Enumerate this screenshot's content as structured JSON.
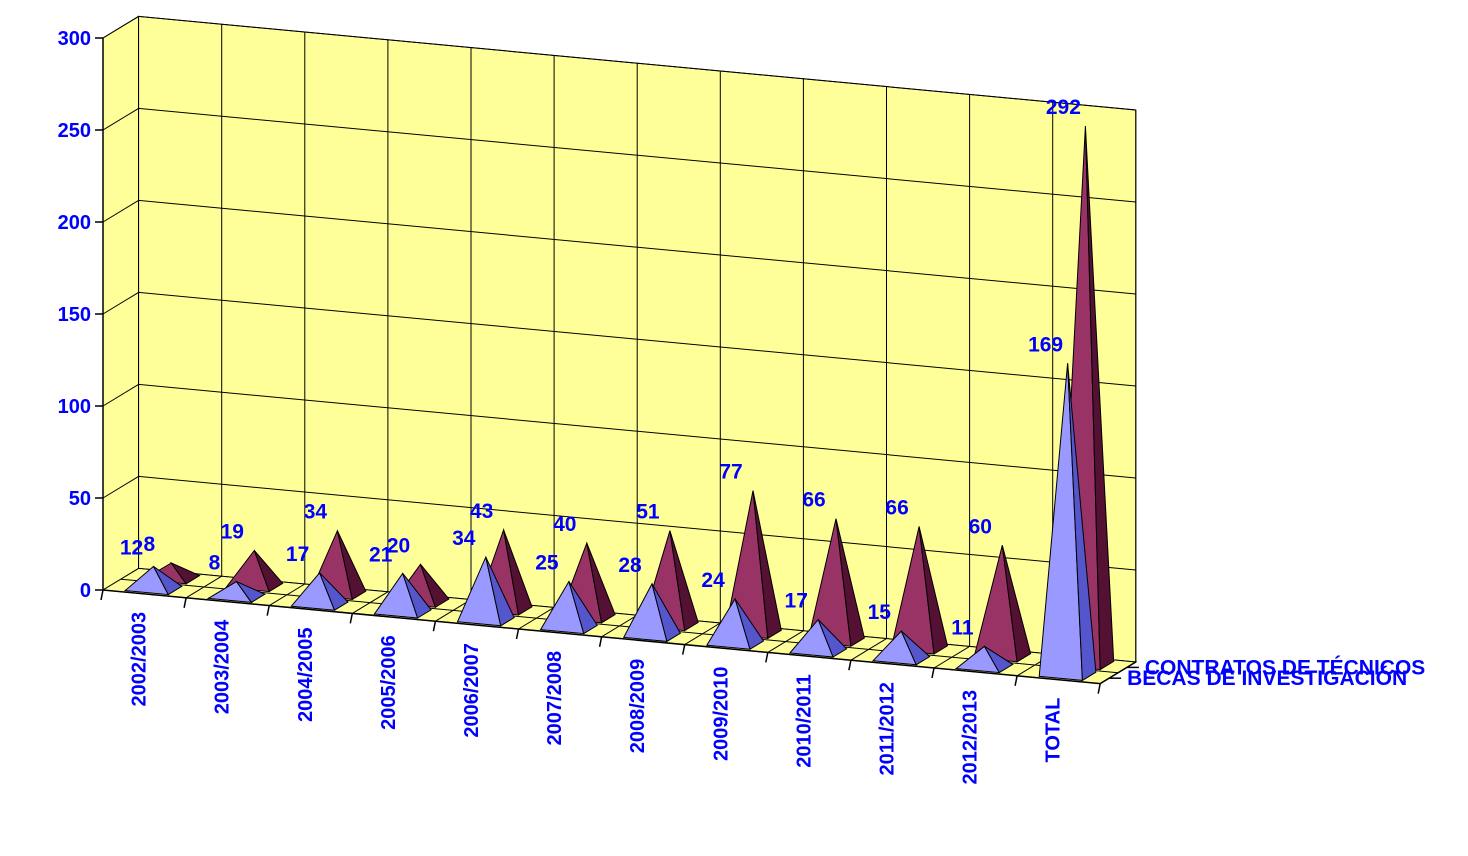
{
  "chart_data": {
    "type": "bar",
    "style": "3d-pyramid",
    "categories": [
      "2002/2003",
      "2003/2004",
      "2004/2005",
      "2005/2006",
      "2006/2007",
      "2007/2008",
      "2008/2009",
      "2009/2010",
      "2010/2011",
      "2011/2012",
      "2012/2013",
      "TOTAL"
    ],
    "series": [
      {
        "name": "BECAS DE INVESTIGACIÓN",
        "values": [
          12,
          8,
          17,
          21,
          34,
          25,
          28,
          24,
          17,
          15,
          11,
          169
        ],
        "color": "#9999ff"
      },
      {
        "name": "CONTRATOS DE TÉCNICOS",
        "values": [
          8,
          19,
          34,
          20,
          43,
          40,
          51,
          77,
          66,
          66,
          60,
          292
        ],
        "color": "#993366"
      }
    ],
    "ylim": [
      0,
      300
    ],
    "yticks": [
      "0",
      "50",
      "100",
      "150",
      "200",
      "250",
      "300"
    ],
    "grid": true,
    "wall_color": "#ffff99",
    "label_color": "#0000ff",
    "legend_position": "right, along depth axis"
  }
}
